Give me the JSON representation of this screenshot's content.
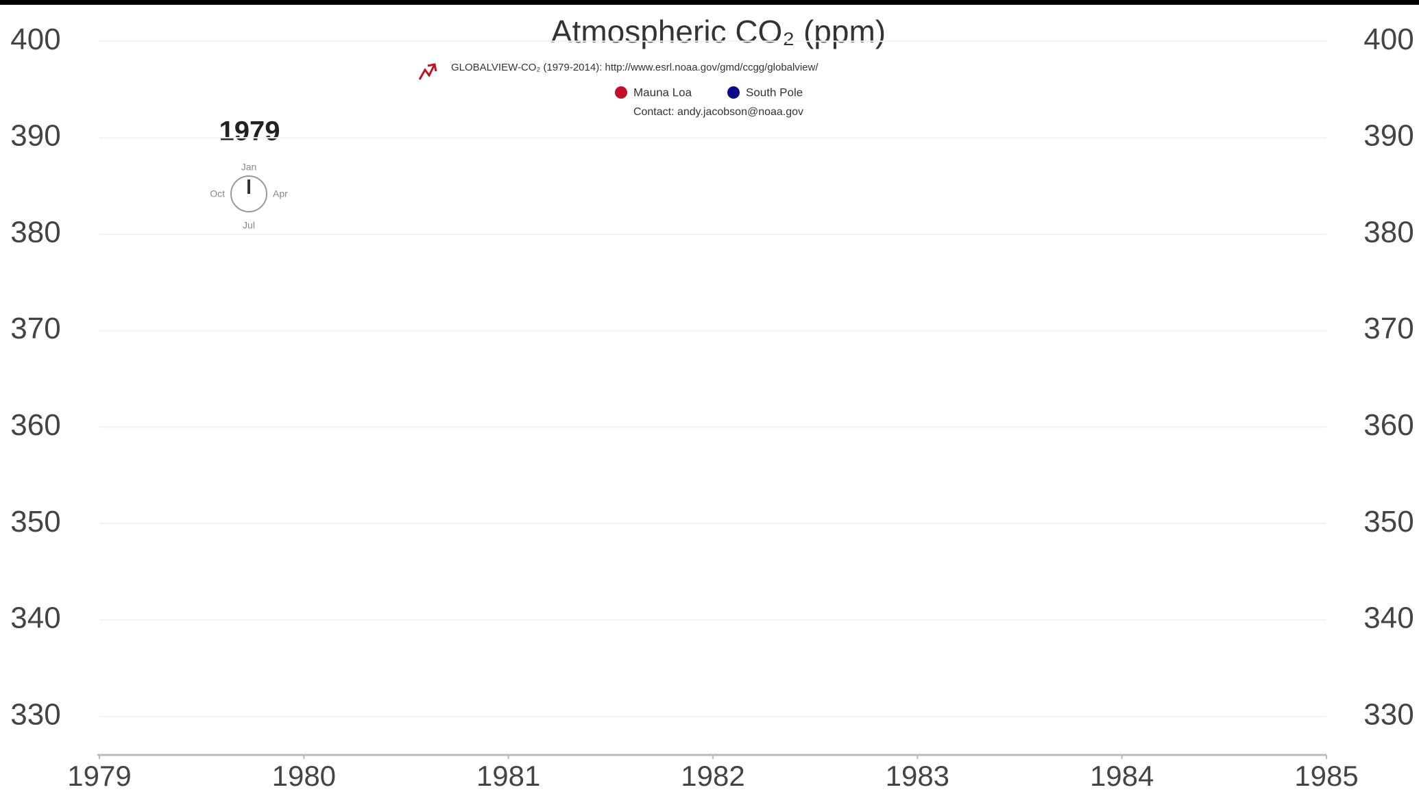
{
  "chart_data": {
    "type": "line",
    "title": "Atmospheric CO₂ (ppm)",
    "source": "GLOBALVIEW-CO₂ (1979-2014): http://www.esrl.noaa.gov/gmd/ccgg/globalview/",
    "contact": "Contact: andy.jacobson@noaa.gov",
    "year_label": "1979",
    "clock_labels": {
      "top": "Jan",
      "right": "Apr",
      "bottom": "Jul",
      "left": "Oct"
    },
    "x": [],
    "series": [
      {
        "name": "Mauna Loa",
        "color": "#c0102a",
        "values": []
      },
      {
        "name": "South Pole",
        "color": "#0a0a8a",
        "values": []
      }
    ],
    "xlim": [
      1979,
      1985
    ],
    "xticks": [
      1979,
      1980,
      1981,
      1982,
      1983,
      1984,
      1985
    ],
    "ylim": [
      326,
      404
    ],
    "yticks": [
      330,
      340,
      350,
      360,
      370,
      380,
      390,
      400
    ],
    "y2lim": [
      326,
      404
    ],
    "y2ticks": [
      330,
      340,
      350,
      360,
      370,
      380,
      390,
      400
    ],
    "grid": true
  }
}
